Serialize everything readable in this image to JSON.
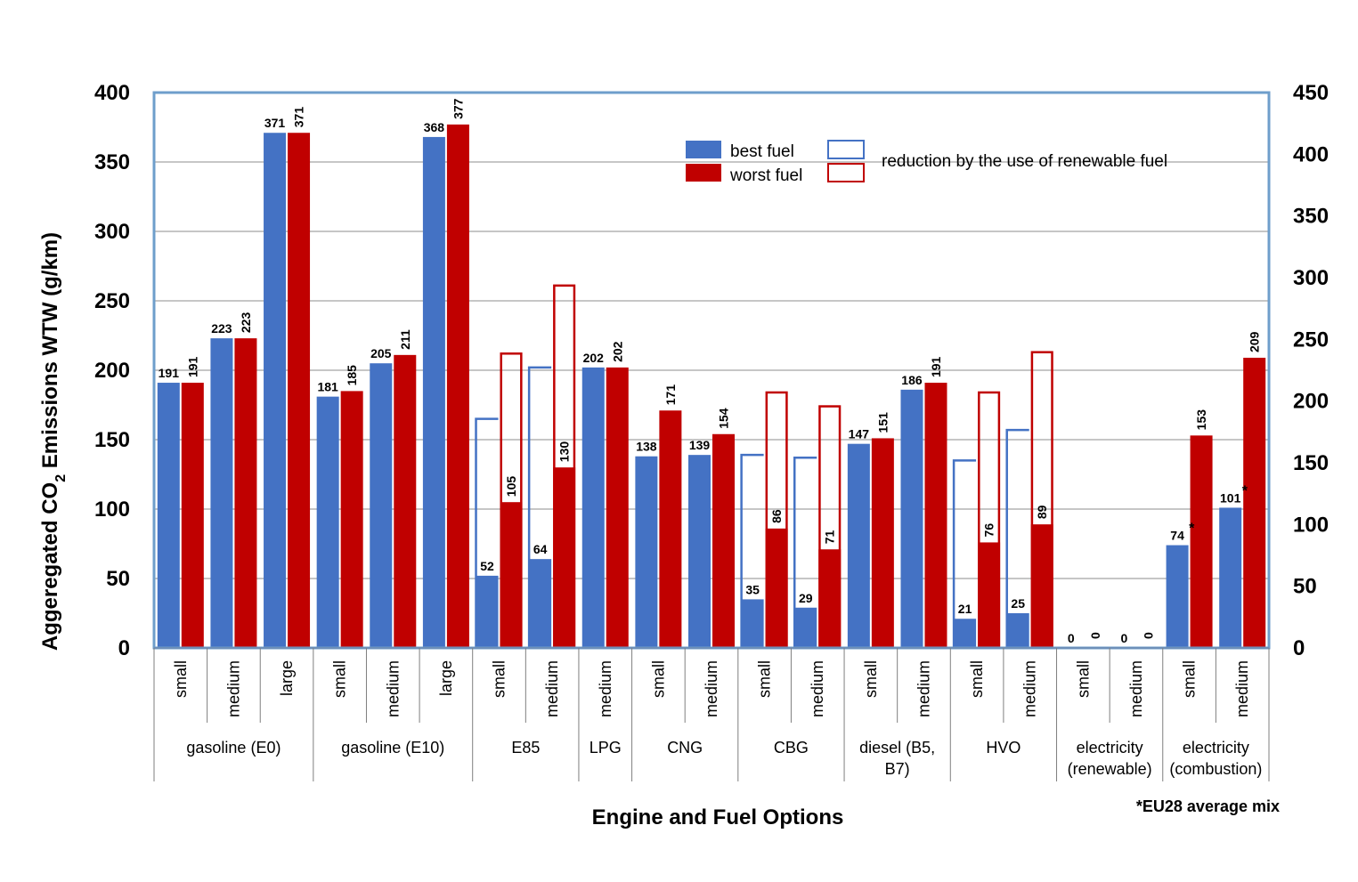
{
  "chart_data": {
    "type": "bar",
    "title": "",
    "xlabel": "Engine and Fuel Options",
    "ylabel_prefix": "Aggeregated CO",
    "ylabel_sub": "2",
    "ylabel_suffix": " Emissions WTW (g/km)",
    "ylim": [
      0,
      400
    ],
    "yticks": [
      0,
      50,
      100,
      150,
      200,
      250,
      300,
      350,
      400
    ],
    "y2lim": [
      0,
      450
    ],
    "y2ticks": [
      0,
      50,
      100,
      150,
      200,
      250,
      300,
      350,
      400,
      450
    ],
    "grid": true,
    "legend_position": "top-center",
    "colors": {
      "best": "#4472C4",
      "worst": "#C00000",
      "frame": "#6E9ECB",
      "grid": "#8C8C8C"
    },
    "legend": {
      "best": "best fuel",
      "worst": "worst fuel",
      "reduction": "reduction by the use of renewable fuel"
    },
    "footnote": "*EU28 average mix",
    "groups": [
      {
        "label": [
          "gasoline (E0)"
        ],
        "size": 3
      },
      {
        "label": [
          "gasoline (E10)"
        ],
        "size": 3
      },
      {
        "label": [
          "E85"
        ],
        "size": 2
      },
      {
        "label": [
          "LPG"
        ],
        "size": 1
      },
      {
        "label": [
          "CNG"
        ],
        "size": 2
      },
      {
        "label": [
          "CBG"
        ],
        "size": 2
      },
      {
        "label": [
          "diesel (B5,",
          "B7)"
        ],
        "size": 2
      },
      {
        "label": [
          "HVO"
        ],
        "size": 2
      },
      {
        "label": [
          "electricity",
          "(renewable)"
        ],
        "size": 2
      },
      {
        "label": [
          "electricity",
          "(combustion)"
        ],
        "size": 2
      }
    ],
    "categories": [
      "small",
      "medium",
      "large",
      "small",
      "medium",
      "large",
      "small",
      "medium",
      "medium",
      "small",
      "medium",
      "small",
      "medium",
      "small",
      "medium",
      "small",
      "medium",
      "small",
      "medium",
      "small",
      "medium"
    ],
    "series": [
      {
        "name": "best fuel",
        "values": [
          191,
          223,
          371,
          181,
          205,
          368,
          52,
          64,
          202,
          138,
          139,
          35,
          29,
          147,
          186,
          21,
          25,
          0,
          0,
          74,
          101
        ],
        "labels": [
          "191",
          "223",
          "371",
          "181",
          "205",
          "368",
          "52",
          "64",
          "202",
          "138",
          "139",
          "35",
          "29",
          "147",
          "186",
          "21",
          "25",
          "0",
          "0",
          "74",
          "101"
        ],
        "reduction_outline_tops": [
          null,
          null,
          null,
          null,
          null,
          null,
          165,
          202,
          null,
          null,
          null,
          139,
          137,
          null,
          null,
          135,
          157,
          null,
          null,
          null,
          null
        ]
      },
      {
        "name": "worst fuel",
        "values": [
          191,
          223,
          371,
          185,
          211,
          377,
          105,
          130,
          202,
          171,
          154,
          86,
          71,
          151,
          191,
          76,
          89,
          0,
          0,
          153,
          209
        ],
        "labels": [
          "191",
          "223",
          "371",
          "185",
          "211",
          "377",
          "105",
          "130",
          "202",
          "171",
          "154",
          "86",
          "71",
          "151",
          "191",
          "76",
          "89",
          "0",
          "0",
          "153",
          "209"
        ],
        "reduction_outline_tops": [
          null,
          null,
          null,
          null,
          null,
          null,
          212,
          261,
          null,
          null,
          null,
          184,
          174,
          null,
          null,
          184,
          213,
          null,
          null,
          null,
          null
        ]
      }
    ],
    "asterisk_marks": [
      {
        "category_index": 19,
        "series": "best fuel",
        "text": "*"
      },
      {
        "category_index": 20,
        "series": "best fuel",
        "text": "*"
      }
    ]
  }
}
